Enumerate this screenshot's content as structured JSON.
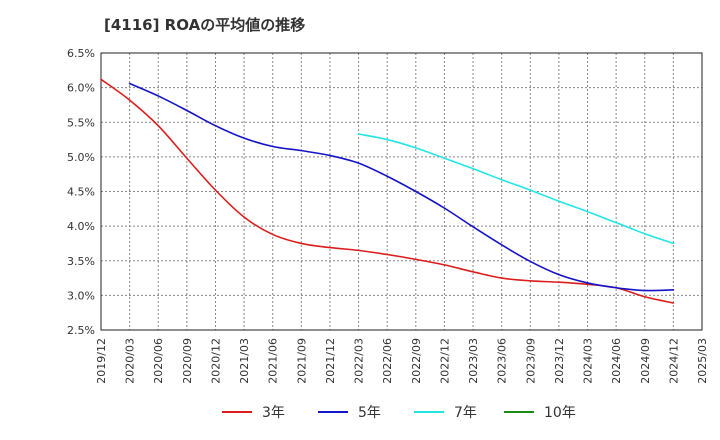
{
  "chart_data": {
    "type": "line",
    "title": "[4116]  ROAの平均値の推移",
    "xlabel": "",
    "ylabel": "",
    "ylim": [
      2.5,
      6.5
    ],
    "yticks": [
      "6.5%",
      "6.0%",
      "5.5%",
      "5.0%",
      "4.5%",
      "4.0%",
      "3.5%",
      "3.0%",
      "2.5%"
    ],
    "categories": [
      "2019/12",
      "2020/03",
      "2020/06",
      "2020/09",
      "2020/12",
      "2021/03",
      "2021/06",
      "2021/09",
      "2021/12",
      "2022/03",
      "2022/06",
      "2022/09",
      "2022/12",
      "2023/03",
      "2023/06",
      "2023/09",
      "2023/12",
      "2024/03",
      "2024/06",
      "2024/09",
      "2024/12",
      "2025/03"
    ],
    "grid": true,
    "legend_position": "bottom",
    "series": [
      {
        "name": "3年",
        "color": "#dd1c1c",
        "values": [
          6.12,
          5.82,
          5.45,
          4.98,
          4.52,
          4.13,
          3.88,
          3.75,
          3.69,
          3.65,
          3.59,
          3.52,
          3.44,
          3.34,
          3.25,
          3.21,
          3.19,
          3.16,
          3.11,
          2.98,
          2.89,
          null
        ]
      },
      {
        "name": "5年",
        "color": "#1414c8",
        "values": [
          null,
          6.06,
          5.88,
          5.67,
          5.45,
          5.27,
          5.15,
          5.09,
          5.02,
          4.91,
          4.72,
          4.5,
          4.26,
          3.99,
          3.73,
          3.49,
          3.3,
          3.18,
          3.11,
          3.07,
          3.08,
          null
        ]
      },
      {
        "name": "7年",
        "color": "#22e6e6",
        "values": [
          null,
          null,
          null,
          null,
          null,
          null,
          null,
          null,
          null,
          5.33,
          5.25,
          5.13,
          4.98,
          4.83,
          4.67,
          4.52,
          4.36,
          4.21,
          4.05,
          3.89,
          3.75,
          null
        ]
      },
      {
        "name": "10年",
        "color": "#1a8a1a",
        "values": [
          null,
          null,
          null,
          null,
          null,
          null,
          null,
          null,
          null,
          null,
          null,
          null,
          null,
          null,
          null,
          null,
          null,
          null,
          null,
          null,
          null,
          null
        ]
      }
    ]
  }
}
